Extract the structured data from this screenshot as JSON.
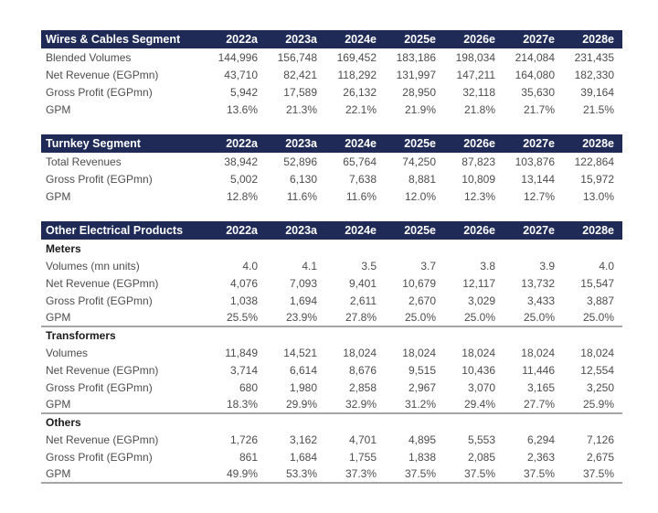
{
  "table": {
    "columns": [
      "2022a",
      "2023a",
      "2024e",
      "2025e",
      "2026e",
      "2027e",
      "2028e"
    ],
    "sections": [
      {
        "title": "Wires & Cables Segment",
        "rows": [
          {
            "label": "Blended Volumes",
            "values": [
              "144,996",
              "156,748",
              "169,452",
              "183,186",
              "198,034",
              "214,084",
              "231,435"
            ]
          },
          {
            "label": "Net Revenue (EGPmn)",
            "values": [
              "43,710",
              "82,421",
              "118,292",
              "131,997",
              "147,211",
              "164,080",
              "182,330"
            ]
          },
          {
            "label": "Gross Profit (EGPmn)",
            "values": [
              "5,942",
              "17,589",
              "26,132",
              "28,950",
              "32,118",
              "35,630",
              "39,164"
            ]
          },
          {
            "label": "GPM",
            "values": [
              "13.6%",
              "21.3%",
              "22.1%",
              "21.9%",
              "21.8%",
              "21.7%",
              "21.5%"
            ]
          }
        ]
      },
      {
        "title": "Turnkey Segment",
        "rows": [
          {
            "label": "Total Revenues",
            "values": [
              "38,942",
              "52,896",
              "65,764",
              "74,250",
              "87,823",
              "103,876",
              "122,864"
            ]
          },
          {
            "label": "Gross Profit (EGPmn)",
            "values": [
              "5,002",
              "6,130",
              "7,638",
              "8,881",
              "10,809",
              "13,144",
              "15,972"
            ]
          },
          {
            "label": "GPM",
            "values": [
              "12.8%",
              "11.6%",
              "11.6%",
              "12.0%",
              "12.3%",
              "12.7%",
              "13.0%"
            ]
          }
        ]
      },
      {
        "title": "Other Electrical Products",
        "subsections": [
          {
            "name": "Meters",
            "rows": [
              {
                "label": "Volumes (mn units)",
                "values": [
                  "4.0",
                  "4.1",
                  "3.5",
                  "3.7",
                  "3.8",
                  "3.9",
                  "4.0"
                ]
              },
              {
                "label": "Net Revenue (EGPmn)",
                "values": [
                  "4,076",
                  "7,093",
                  "9,401",
                  "10,679",
                  "12,117",
                  "13,732",
                  "15,547"
                ]
              },
              {
                "label": "Gross Profit (EGPmn)",
                "values": [
                  "1,038",
                  "1,694",
                  "2,611",
                  "2,670",
                  "3,029",
                  "3,433",
                  "3,887"
                ]
              },
              {
                "label": "GPM",
                "values": [
                  "25.5%",
                  "23.9%",
                  "27.8%",
                  "25.0%",
                  "25.0%",
                  "25.0%",
                  "25.0%"
                ]
              }
            ]
          },
          {
            "name": "Transformers",
            "rows": [
              {
                "label": "Volumes",
                "values": [
                  "11,849",
                  "14,521",
                  "18,024",
                  "18,024",
                  "18,024",
                  "18,024",
                  "18,024"
                ]
              },
              {
                "label": "Net Revenue (EGPmn)",
                "values": [
                  "3,714",
                  "6,614",
                  "8,676",
                  "9,515",
                  "10,436",
                  "11,446",
                  "12,554"
                ]
              },
              {
                "label": "Gross Profit (EGPmn)",
                "values": [
                  "680",
                  "1,980",
                  "2,858",
                  "2,967",
                  "3,070",
                  "3,165",
                  "3,250"
                ]
              },
              {
                "label": "GPM",
                "values": [
                  "18.3%",
                  "29.9%",
                  "32.9%",
                  "31.2%",
                  "29.4%",
                  "27.7%",
                  "25.9%"
                ]
              }
            ]
          },
          {
            "name": "Others",
            "rows": [
              {
                "label": "Net Revenue (EGPmn)",
                "values": [
                  "1,726",
                  "3,162",
                  "4,701",
                  "4,895",
                  "5,553",
                  "6,294",
                  "7,126"
                ]
              },
              {
                "label": "Gross Profit (EGPmn)",
                "values": [
                  "861",
                  "1,684",
                  "1,755",
                  "1,838",
                  "2,085",
                  "2,363",
                  "2,675"
                ]
              },
              {
                "label": "GPM",
                "values": [
                  "49.9%",
                  "53.3%",
                  "37.3%",
                  "37.5%",
                  "37.5%",
                  "37.5%",
                  "37.5%"
                ]
              }
            ]
          }
        ]
      }
    ]
  },
  "colors": {
    "header_bg": "#1F2A56",
    "header_text": "#FFFFFF",
    "body_text": "#4D4D4D",
    "subheader_text": "#1A1A1A",
    "divider": "#A6A6A6"
  }
}
